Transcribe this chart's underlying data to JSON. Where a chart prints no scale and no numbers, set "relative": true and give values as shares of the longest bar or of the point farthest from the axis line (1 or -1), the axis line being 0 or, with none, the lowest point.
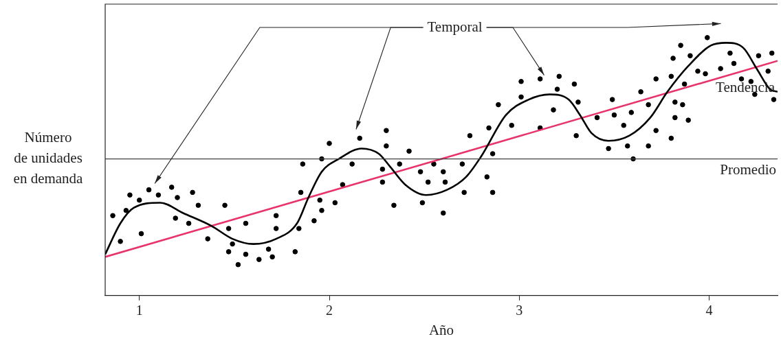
{
  "chart_data": {
    "type": "scatter",
    "xlabel": "Año",
    "ylabel": "Número\nde unidades\nen demanda",
    "relative": true,
    "xlim": [
      0.82,
      4.36
    ],
    "xticks": [
      1,
      2,
      3,
      4
    ],
    "grid": false,
    "legend": false,
    "marker": "circle",
    "series": [
      {
        "color": "#000000",
        "x": [
          0.86,
          0.9,
          0.93,
          0.95,
          1.0,
          1.01,
          1.05,
          1.1,
          1.17,
          1.19,
          1.2,
          1.26,
          1.28,
          1.31,
          1.36,
          1.45,
          1.47,
          1.47,
          1.49,
          1.52,
          1.56,
          1.56,
          1.63,
          1.68,
          1.7,
          1.72,
          1.72,
          1.82,
          1.84,
          1.85,
          1.86,
          1.92,
          1.95,
          1.96,
          1.96,
          2.0,
          2.03,
          2.07,
          2.12,
          2.16,
          2.3,
          2.3,
          2.37,
          2.28,
          2.28,
          2.42,
          2.34,
          2.48,
          2.55,
          2.52,
          2.6,
          2.61,
          2.49,
          2.6,
          2.7,
          2.71,
          2.74,
          2.83,
          2.86,
          2.86,
          2.84,
          2.96,
          2.89,
          3.01,
          3.01,
          3.11,
          3.11,
          3.18,
          3.2,
          3.21,
          3.29,
          3.31,
          3.3,
          3.41,
          3.47,
          3.49,
          3.5,
          3.55,
          3.57,
          3.59,
          3.6,
          3.64,
          3.68,
          3.68,
          3.72,
          3.72,
          3.8,
          3.81,
          3.8,
          3.82,
          3.82,
          3.86,
          3.89,
          3.85,
          3.9,
          3.87,
          3.94,
          3.98,
          3.99,
          4.06,
          4.11,
          4.13,
          4.17,
          4.22,
          4.24,
          4.26,
          4.31,
          4.33,
          4.34
        ],
        "values": [
          0.31,
          0.21,
          0.33,
          0.39,
          0.37,
          0.24,
          0.41,
          0.39,
          0.42,
          0.3,
          0.38,
          0.28,
          0.4,
          0.35,
          0.22,
          0.35,
          0.17,
          0.26,
          0.2,
          0.12,
          0.28,
          0.16,
          0.14,
          0.18,
          0.15,
          0.31,
          0.26,
          0.17,
          0.26,
          0.4,
          0.51,
          0.29,
          0.37,
          0.33,
          0.53,
          0.59,
          0.36,
          0.43,
          0.51,
          0.61,
          0.64,
          0.58,
          0.51,
          0.49,
          0.44,
          0.56,
          0.35,
          0.48,
          0.51,
          0.44,
          0.48,
          0.44,
          0.36,
          0.32,
          0.51,
          0.4,
          0.62,
          0.46,
          0.55,
          0.4,
          0.65,
          0.66,
          0.74,
          0.83,
          0.77,
          0.65,
          0.84,
          0.72,
          0.8,
          0.85,
          0.82,
          0.75,
          0.62,
          0.69,
          0.57,
          0.76,
          0.7,
          0.66,
          0.58,
          0.71,
          0.53,
          0.79,
          0.74,
          0.58,
          0.84,
          0.64,
          0.61,
          0.92,
          0.85,
          0.75,
          0.69,
          0.74,
          0.68,
          0.97,
          0.93,
          0.82,
          0.87,
          0.86,
          1.0,
          0.88,
          0.94,
          0.9,
          0.84,
          0.83,
          0.78,
          0.93,
          0.87,
          0.94,
          0.76
        ]
      },
      {
        "type": "line",
        "name": "Temporal",
        "color": "#000000",
        "marker": "none",
        "x": [
          0.82,
          0.9,
          0.97,
          1.11,
          1.23,
          1.38,
          1.49,
          1.6,
          1.72,
          1.83,
          1.89,
          1.96,
          2.05,
          2.17,
          2.26,
          2.32,
          2.4,
          2.51,
          2.62,
          2.72,
          2.8,
          2.93,
          3.05,
          3.16,
          3.26,
          3.32,
          3.38,
          3.47,
          3.58,
          3.69,
          3.78,
          3.89,
          4.01,
          4.09,
          4.18,
          4.25,
          4.32,
          4.36
        ],
        "values": [
          0.16,
          0.28,
          0.34,
          0.36,
          0.32,
          0.27,
          0.22,
          0.2,
          0.22,
          0.28,
          0.38,
          0.48,
          0.53,
          0.57,
          0.55,
          0.5,
          0.43,
          0.39,
          0.41,
          0.46,
          0.54,
          0.7,
          0.76,
          0.78,
          0.76,
          0.7,
          0.63,
          0.6,
          0.62,
          0.69,
          0.79,
          0.89,
          0.97,
          0.98,
          0.96,
          0.88,
          0.8,
          0.79
        ]
      },
      {
        "type": "line",
        "name": "Tendencia",
        "color": "#e8336b",
        "marker": "none",
        "x": [
          0.82,
          4.36
        ],
        "values": [
          0.15,
          0.91
        ]
      }
    ],
    "ref_lines": [
      {
        "axis": "y",
        "value": 0.53,
        "label": "Promedio",
        "color": "#404040"
      }
    ]
  }
}
